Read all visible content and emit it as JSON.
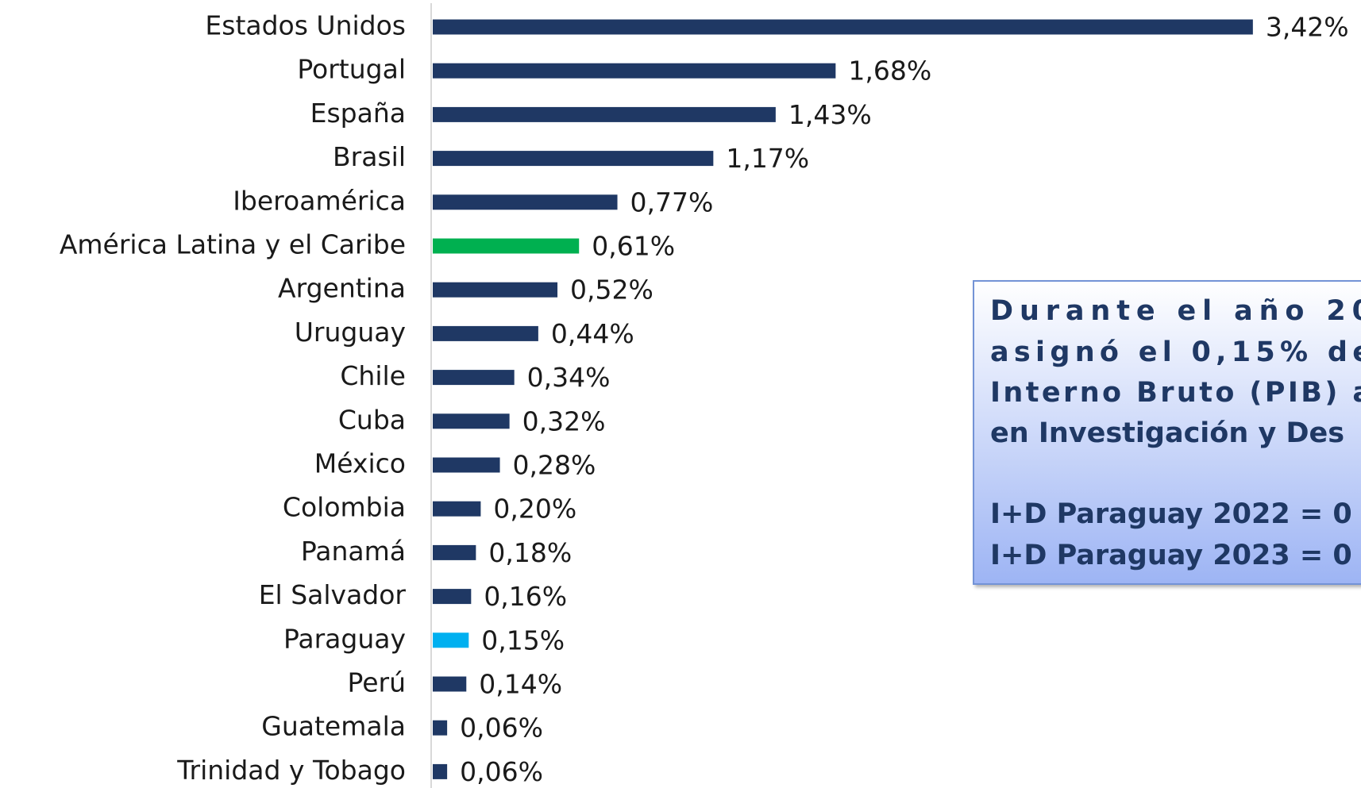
{
  "chart_data": {
    "type": "bar",
    "orientation": "horizontal",
    "categories": [
      "Estados Unidos",
      "Portugal",
      "España",
      "Brasil",
      "Iberoamérica",
      "América Latina y el Caribe",
      "Argentina",
      "Uruguay",
      "Chile",
      "Cuba",
      "México",
      "Colombia",
      "Panamá",
      "El Salvador",
      "Paraguay",
      "Perú",
      "Guatemala",
      "Trinidad y Tobago"
    ],
    "values": [
      3.42,
      1.68,
      1.43,
      1.17,
      0.77,
      0.61,
      0.52,
      0.44,
      0.34,
      0.32,
      0.28,
      0.2,
      0.18,
      0.16,
      0.15,
      0.14,
      0.06,
      0.06
    ],
    "value_labels": [
      "3,42%",
      "1,68%",
      "1,43%",
      "1,17%",
      "0,77%",
      "0,61%",
      "0,52%",
      "0,44%",
      "0,34%",
      "0,32%",
      "0,28%",
      "0,20%",
      "0,18%",
      "0,16%",
      "0,15%",
      "0,14%",
      "0,06%",
      "0,06%"
    ],
    "colors": [
      "#1f3864",
      "#1f3864",
      "#1f3864",
      "#1f3864",
      "#1f3864",
      "#00b050",
      "#1f3864",
      "#1f3864",
      "#1f3864",
      "#1f3864",
      "#1f3864",
      "#1f3864",
      "#1f3864",
      "#1f3864",
      "#00b0f0",
      "#1f3864",
      "#1f3864",
      "#1f3864"
    ],
    "annotation": {
      "lines": [
        "Durante el año 20",
        "asignó el 0,15% de",
        "Interno Bruto (PIB) a",
        "en Investigación y Des",
        "I+D Paraguay 2022 = 0",
        "I+D Paraguay 2023 = 0"
      ]
    }
  }
}
